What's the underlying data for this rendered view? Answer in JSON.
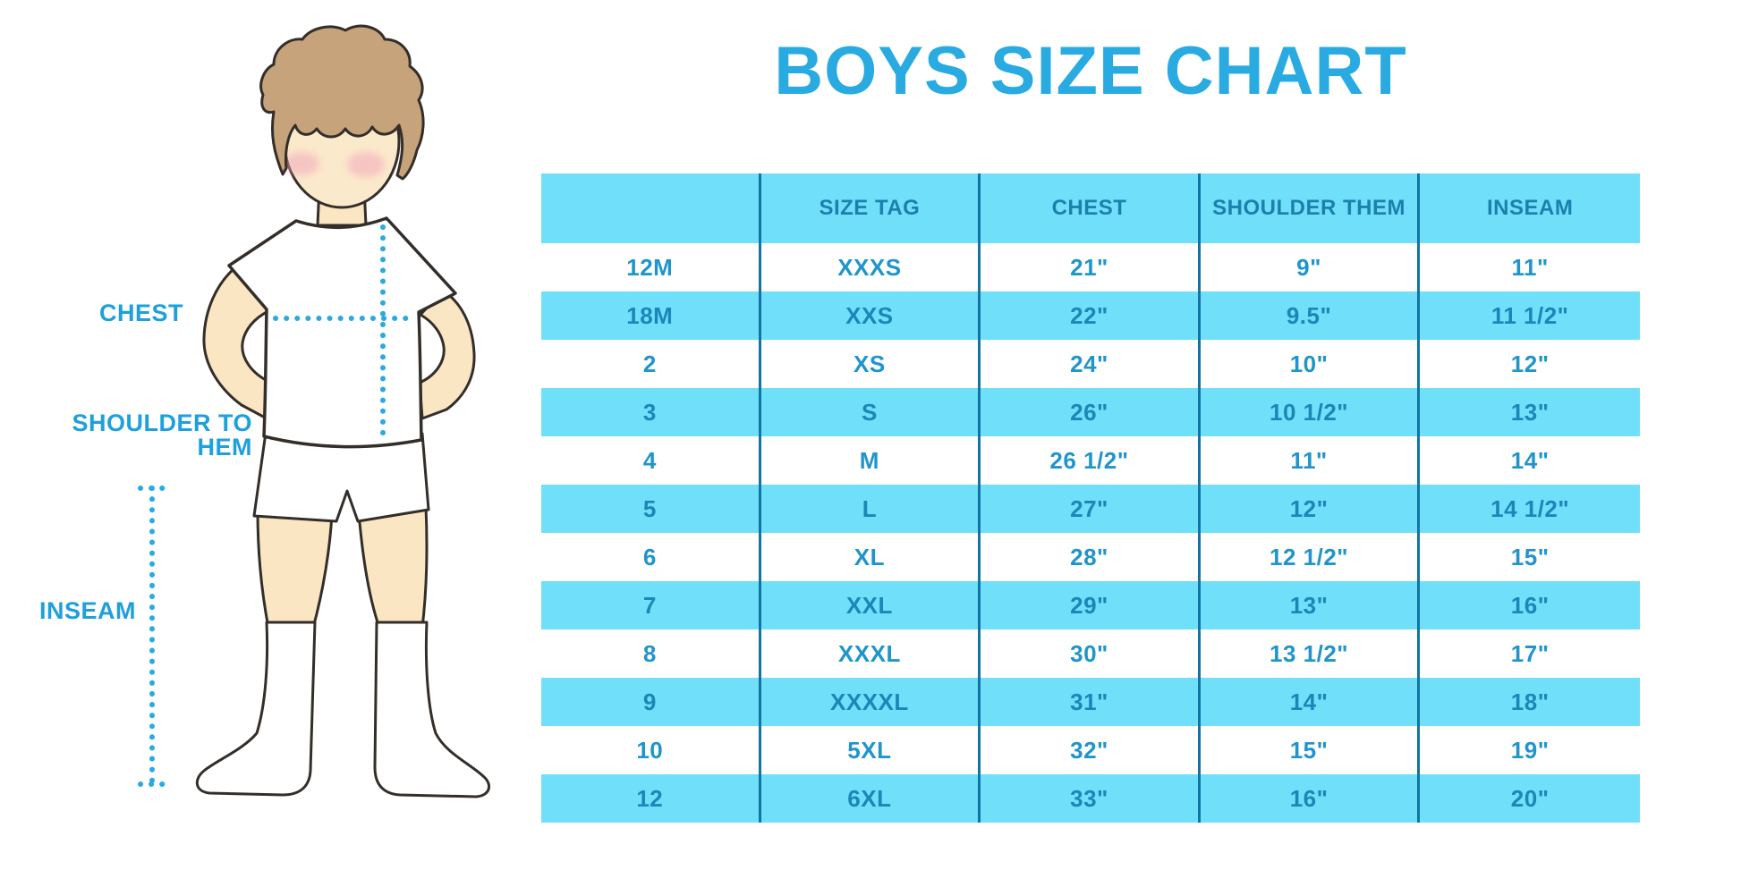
{
  "title": "BOYS SIZE CHART",
  "figure": {
    "description": "cartoon boy in white t-shirt, shorts and knee socks with dotted measurement lines",
    "labels": {
      "chest": "CHEST",
      "shoulder_to_hem": "SHOULDER TO HEM",
      "inseam": "INSEAM"
    }
  },
  "chart_data": {
    "type": "table",
    "title": "BOYS SIZE CHART",
    "columns": [
      "",
      "SIZE TAG",
      "CHEST",
      "SHOULDER THEM",
      "INSEAM"
    ],
    "rows": [
      [
        "12M",
        "XXXS",
        "21\"",
        "9\"",
        "11\""
      ],
      [
        "18M",
        "XXS",
        "22\"",
        "9.5\"",
        "11 1/2\""
      ],
      [
        "2",
        "XS",
        "24\"",
        "10\"",
        "12\""
      ],
      [
        "3",
        "S",
        "26\"",
        "10 1/2\"",
        "13\""
      ],
      [
        "4",
        "M",
        "26 1/2\"",
        "11\"",
        "14\""
      ],
      [
        "5",
        "L",
        "27\"",
        "12\"",
        "14 1/2\""
      ],
      [
        "6",
        "XL",
        "28\"",
        "12 1/2\"",
        "15\""
      ],
      [
        "7",
        "XXL",
        "29\"",
        "13\"",
        "16\""
      ],
      [
        "8",
        "XXXL",
        "30\"",
        "13 1/2\"",
        "17\""
      ],
      [
        "9",
        "XXXXL",
        "31\"",
        "14\"",
        "18\""
      ],
      [
        "10",
        "5XL",
        "32\"",
        "15\"",
        "19\""
      ],
      [
        "12",
        "6XL",
        "33\"",
        "16\"",
        "20\""
      ]
    ],
    "row_stripe_pattern": "white/cyan alternating starting white",
    "legend_position": "none",
    "grid": "vertical dividers only"
  },
  "colors": {
    "accent_blue": "#29ABE2",
    "label_blue": "#1EA0DC",
    "row_cyan": "#70E0FA",
    "divider_blue": "#1174A4",
    "header_text": "#1C7FAE",
    "cell_text_white_row": "#2095CC",
    "cell_text_cyan_row": "#1B86B8",
    "skin": "#FAE6C2",
    "hair": "#C6A37B",
    "outline": "#332E29",
    "blush": "#F2A8BC"
  }
}
